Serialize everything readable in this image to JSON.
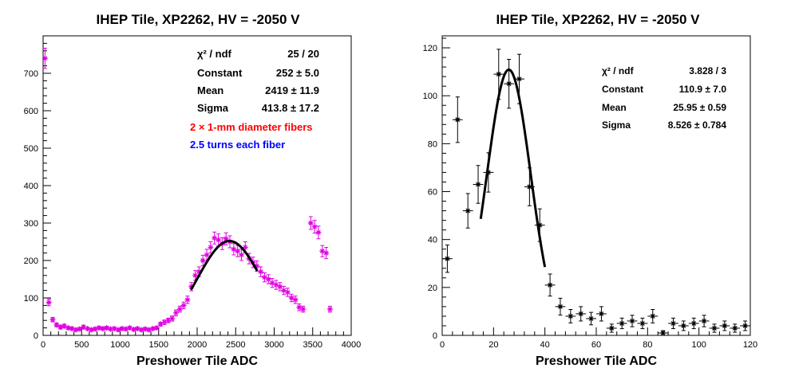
{
  "chart_data": [
    {
      "type": "scatter",
      "title": "IHEP Tile, XP2262, HV = -2050 V",
      "xlabel": "Preshower Tile ADC",
      "ylabel": "",
      "xlim": [
        0,
        4000
      ],
      "ylim": [
        0,
        800
      ],
      "xticks": [
        "0",
        "500",
        "1000",
        "1500",
        "2000",
        "2500",
        "3000",
        "3500",
        "4000"
      ],
      "yticks": [
        "0",
        "100",
        "200",
        "300",
        "400",
        "500",
        "600",
        "700"
      ],
      "marker_color": "#e000e0",
      "fit_color": "#000000",
      "stats": {
        "chi2_label": "χ² / ndf",
        "chi2_value": "25 / 20",
        "const_label": "Constant",
        "const_value": "252 ± 5.0",
        "mean_label": "Mean",
        "mean_value": "2419 ± 11.9",
        "sigma_label": "Sigma",
        "sigma_value": "413.8 ± 17.2"
      },
      "annotations": [
        {
          "text": "2 × 1-mm diameter fibers",
          "color": "#ff0000"
        },
        {
          "text": "2.5 turns each fiber",
          "color": "#0000ff"
        }
      ],
      "fit": {
        "constant": 252,
        "mean": 2419,
        "sigma": 413.8,
        "range": [
          1920,
          2780
        ]
      },
      "series": [
        {
          "x": [
            25,
            75,
            125,
            175,
            225,
            275,
            325,
            375,
            425,
            475,
            525,
            575,
            625,
            675,
            725,
            775,
            825,
            875,
            925,
            975,
            1025,
            1075,
            1125,
            1175,
            1225,
            1275,
            1325,
            1375,
            1425,
            1475,
            1525,
            1575,
            1625,
            1675,
            1725,
            1775,
            1825,
            1875,
            1925,
            1975,
            2025,
            2075,
            2125,
            2175,
            2225,
            2275,
            2325,
            2375,
            2425,
            2475,
            2525,
            2575,
            2625,
            2675,
            2725,
            2775,
            2825,
            2875,
            2925,
            2975,
            3025,
            3075,
            3125,
            3175,
            3225,
            3275,
            3325,
            3375,
            3475,
            3525,
            3575,
            3625,
            3675,
            3725
          ],
          "y": [
            740,
            88,
            42,
            28,
            22,
            25,
            20,
            18,
            15,
            17,
            22,
            18,
            15,
            17,
            20,
            18,
            20,
            17,
            18,
            15,
            18,
            17,
            20,
            16,
            18,
            15,
            17,
            15,
            18,
            20,
            30,
            35,
            40,
            45,
            60,
            70,
            80,
            95,
            130,
            160,
            170,
            200,
            215,
            235,
            260,
            255,
            245,
            258,
            250,
            230,
            225,
            215,
            235,
            205,
            195,
            185,
            170,
            155,
            150,
            140,
            135,
            130,
            120,
            115,
            100,
            95,
            75,
            70,
            300,
            290,
            275,
            225,
            220,
            70
          ],
          "yerr": [
            27,
            9,
            6,
            5,
            5,
            5,
            4,
            4,
            4,
            4,
            5,
            4,
            4,
            4,
            4,
            4,
            4,
            4,
            4,
            4,
            4,
            4,
            4,
            4,
            4,
            4,
            4,
            4,
            4,
            4,
            5,
            6,
            6,
            7,
            8,
            8,
            9,
            10,
            11,
            13,
            13,
            14,
            15,
            15,
            16,
            16,
            16,
            16,
            16,
            15,
            15,
            15,
            15,
            14,
            14,
            14,
            13,
            12,
            12,
            12,
            12,
            11,
            11,
            11,
            10,
            10,
            9,
            8,
            17,
            17,
            17,
            15,
            15,
            8
          ]
        }
      ]
    },
    {
      "type": "scatter",
      "title": "IHEP Tile, XP2262, HV = -2050 V",
      "xlabel": "Preshower Tile ADC",
      "ylabel": "",
      "xlim": [
        0,
        120
      ],
      "ylim": [
        0,
        125
      ],
      "xticks": [
        "0",
        "20",
        "40",
        "60",
        "80",
        "100",
        "120"
      ],
      "yticks": [
        "0",
        "20",
        "40",
        "60",
        "80",
        "100",
        "120"
      ],
      "marker_color": "#000000",
      "fit_color": "#000000",
      "stats": {
        "chi2_label": "χ² / ndf",
        "chi2_value": "3.828 / 3",
        "const_label": "Constant",
        "const_value": "110.9 ± 7.0",
        "mean_label": "Mean",
        "mean_value": "25.95 ± 0.59",
        "sigma_label": "Sigma",
        "sigma_value": "8.526 ± 0.784"
      },
      "annotations": [],
      "fit": {
        "constant": 110.9,
        "mean": 25.95,
        "sigma": 8.526,
        "range": [
          15,
          40
        ]
      },
      "series": [
        {
          "x": [
            2,
            6,
            10,
            14,
            18,
            22,
            26,
            30,
            34,
            38,
            42,
            46,
            50,
            54,
            58,
            62,
            66,
            70,
            74,
            78,
            82,
            86,
            90,
            94,
            98,
            102,
            106,
            110,
            114,
            118
          ],
          "y": [
            32,
            90,
            52,
            63,
            68,
            109,
            105,
            107,
            62,
            46,
            21,
            12,
            8,
            9,
            7,
            9,
            3,
            5,
            6,
            5,
            8,
            1,
            5,
            4,
            5,
            6,
            3,
            4,
            3,
            4
          ],
          "yerr": [
            5.7,
            9.5,
            7.2,
            7.9,
            8.2,
            10.4,
            10.2,
            10.3,
            7.9,
            6.8,
            4.6,
            3.5,
            2.8,
            3,
            2.6,
            3,
            1.7,
            2.2,
            2.4,
            2.2,
            2.8,
            1,
            2.2,
            2,
            2.2,
            2.4,
            1.7,
            2,
            1.7,
            2
          ]
        }
      ]
    }
  ]
}
